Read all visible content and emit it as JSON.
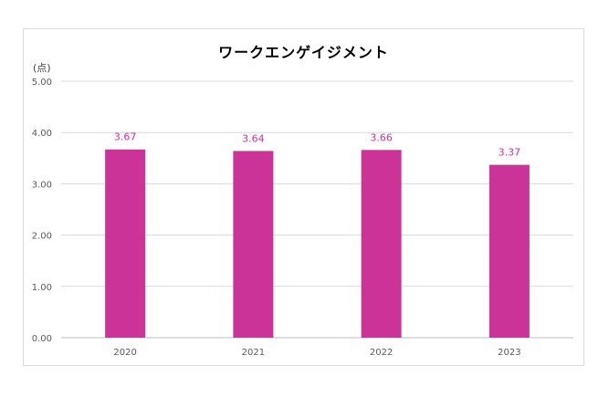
{
  "chart_data": {
    "type": "bar",
    "title": "ワークエンゲイジメント",
    "y_unit_label": "(点)",
    "categories": [
      "2020",
      "2021",
      "2022",
      "2023"
    ],
    "values": [
      3.67,
      3.64,
      3.66,
      3.37
    ],
    "data_labels": [
      "3.67",
      "3.64",
      "3.66",
      "3.37"
    ],
    "ylim": [
      0,
      5
    ],
    "y_ticks": [
      "0.00",
      "1.00",
      "2.00",
      "3.00",
      "4.00",
      "5.00"
    ],
    "grid": true,
    "legend": "none",
    "bar_color": "#cc3399"
  }
}
